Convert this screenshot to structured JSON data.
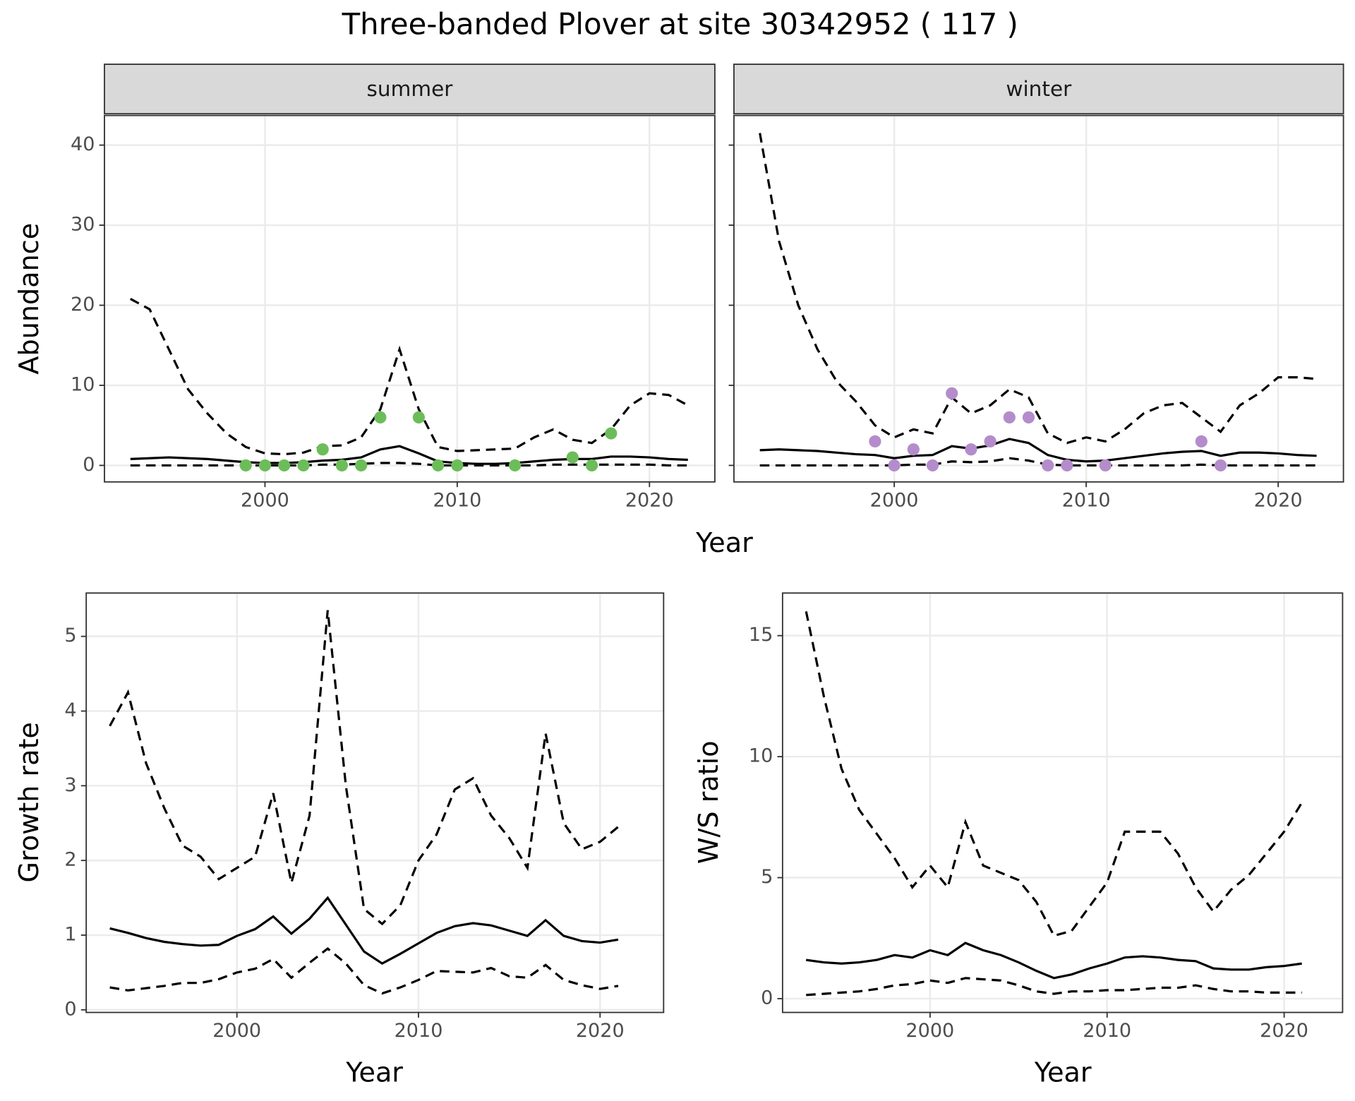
{
  "title": "Three-banded Plover at site 30342952 ( 117 )",
  "chart_data": [
    {
      "type": "line",
      "strip": "summer",
      "xlabel": "Year",
      "ylabel": "Abundance",
      "x": [
        1993,
        1994,
        1995,
        1996,
        1997,
        1998,
        1999,
        2000,
        2001,
        2002,
        2003,
        2004,
        2005,
        2006,
        2007,
        2008,
        2009,
        2010,
        2011,
        2012,
        2013,
        2014,
        2015,
        2016,
        2017,
        2018,
        2019,
        2020,
        2021,
        2022
      ],
      "xlim": [
        1991.65,
        2023.4
      ],
      "ylim": [
        -2.06,
        43.7
      ],
      "xticks": [
        2000,
        2010,
        2020
      ],
      "yticks": [
        0,
        10,
        20,
        30,
        40
      ],
      "grid": true,
      "ytick_labels": true,
      "series": [
        {
          "color": "#000000",
          "dashed": true,
          "values": [
            20.8,
            19.5,
            14.5,
            9.5,
            6.5,
            4,
            2.3,
            1.5,
            1.4,
            1.6,
            2.4,
            2.5,
            3.5,
            7,
            14.5,
            7,
            2.3,
            1.8,
            1.9,
            2,
            2.1,
            3.5,
            4.5,
            3.2,
            2.8,
            4.5,
            7.5,
            9,
            8.8,
            7.5
          ]
        },
        {
          "color": "#000000",
          "dashed": false,
          "values": [
            0.8,
            0.9,
            1.0,
            0.9,
            0.8,
            0.6,
            0.4,
            0.3,
            0.3,
            0.4,
            0.6,
            0.7,
            1.0,
            2.0,
            2.4,
            1.5,
            0.5,
            0.3,
            0.2,
            0.2,
            0.3,
            0.5,
            0.7,
            0.8,
            0.8,
            1.1,
            1.1,
            1.0,
            0.8,
            0.7
          ]
        },
        {
          "color": "#000000",
          "dashed": true,
          "values": [
            0,
            0,
            0,
            0,
            0,
            0,
            0,
            0,
            0,
            0,
            0.1,
            0.1,
            0.2,
            0.3,
            0.3,
            0.2,
            0,
            0,
            0,
            0,
            0,
            0,
            0.1,
            0.1,
            0.1,
            0.1,
            0.1,
            0.1,
            0,
            0
          ]
        }
      ],
      "points": {
        "color": "#6cbd5a",
        "x": [
          1999,
          2000,
          2001,
          2002,
          2003,
          2004,
          2005,
          2006,
          2008,
          2009,
          2010,
          2013,
          2016,
          2017,
          2018
        ],
        "values": [
          0,
          0,
          0,
          0,
          2,
          0,
          0,
          6,
          6,
          0,
          0,
          0,
          1,
          0,
          4
        ]
      }
    },
    {
      "type": "line",
      "strip": "winter",
      "x": [
        1993,
        1994,
        1995,
        1996,
        1997,
        1998,
        1999,
        2000,
        2001,
        2002,
        2003,
        2004,
        2005,
        2006,
        2007,
        2008,
        2009,
        2010,
        2011,
        2012,
        2013,
        2014,
        2015,
        2016,
        2017,
        2018,
        2019,
        2020,
        2021,
        2022
      ],
      "xlim": [
        1991.65,
        2023.4
      ],
      "ylim": [
        -2.06,
        43.7
      ],
      "xticks": [
        2000,
        2010,
        2020
      ],
      "yticks": [
        0,
        10,
        20,
        30,
        40
      ],
      "grid": true,
      "ytick_labels": false,
      "series": [
        {
          "color": "#000000",
          "dashed": true,
          "values": [
            41.5,
            28,
            20,
            14.5,
            10.5,
            8,
            5,
            3.5,
            4.5,
            4,
            8.5,
            6.5,
            7.5,
            9.5,
            8.5,
            4,
            2.8,
            3.5,
            3,
            4.5,
            6.5,
            7.5,
            7.8,
            6,
            4.2,
            7.5,
            9,
            11,
            11,
            10.8
          ]
        },
        {
          "color": "#000000",
          "dashed": false,
          "values": [
            1.9,
            2.0,
            1.9,
            1.8,
            1.6,
            1.4,
            1.3,
            0.9,
            1.2,
            1.3,
            2.4,
            2.1,
            2.5,
            3.3,
            2.8,
            1.3,
            0.7,
            0.5,
            0.6,
            0.9,
            1.2,
            1.5,
            1.7,
            1.8,
            1.2,
            1.6,
            1.6,
            1.5,
            1.3,
            1.2
          ]
        },
        {
          "color": "#000000",
          "dashed": true,
          "values": [
            0,
            0,
            0,
            0,
            0,
            0,
            0,
            0,
            0.1,
            0.1,
            0.5,
            0.4,
            0.5,
            0.9,
            0.6,
            0.1,
            0,
            0,
            0,
            0,
            0,
            0,
            0,
            0.1,
            0,
            0,
            0,
            0,
            0,
            0
          ]
        }
      ],
      "points": {
        "color": "#b48ccb",
        "x": [
          1999,
          2000,
          2001,
          2002,
          2003,
          2004,
          2005,
          2006,
          2007,
          2008,
          2009,
          2011,
          2016,
          2017
        ],
        "values": [
          3,
          0,
          2,
          0,
          9,
          2,
          3,
          6,
          6,
          0,
          0,
          0,
          3,
          0
        ]
      }
    },
    {
      "type": "line",
      "xlabel": "Year",
      "ylabel": "Growth rate",
      "x": [
        1993,
        1994,
        1995,
        1996,
        1997,
        1998,
        1999,
        2000,
        2001,
        2002,
        2003,
        2004,
        2005,
        2006,
        2007,
        2008,
        2009,
        2010,
        2011,
        2012,
        2013,
        2014,
        2015,
        2016,
        2017,
        2018,
        2019,
        2020,
        2021
      ],
      "xlim": [
        1991.7,
        2023.5
      ],
      "ylim": [
        -0.035,
        5.58
      ],
      "xticks": [
        2000,
        2010,
        2020
      ],
      "yticks": [
        0,
        1,
        2,
        3,
        4,
        5
      ],
      "grid": true,
      "ytick_labels": true,
      "series": [
        {
          "color": "#000000",
          "dashed": true,
          "values": [
            3.8,
            4.25,
            3.3,
            2.7,
            2.2,
            2.05,
            1.75,
            1.9,
            2.05,
            2.9,
            1.7,
            2.6,
            5.35,
            3,
            1.35,
            1.15,
            1.4,
            2.0,
            2.35,
            2.95,
            3.1,
            2.6,
            2.3,
            1.9,
            3.7,
            2.5,
            2.15,
            2.25,
            2.45
          ]
        },
        {
          "color": "#000000",
          "dashed": false,
          "values": [
            1.09,
            1.03,
            0.96,
            0.91,
            0.88,
            0.86,
            0.87,
            0.99,
            1.08,
            1.25,
            1.02,
            1.22,
            1.5,
            1.14,
            0.78,
            0.62,
            0.75,
            0.89,
            1.03,
            1.12,
            1.16,
            1.13,
            1.06,
            0.99,
            1.2,
            0.99,
            0.92,
            0.9,
            0.94
          ]
        },
        {
          "color": "#000000",
          "dashed": true,
          "values": [
            0.3,
            0.26,
            0.29,
            0.32,
            0.36,
            0.36,
            0.41,
            0.5,
            0.55,
            0.68,
            0.43,
            0.63,
            0.82,
            0.62,
            0.33,
            0.22,
            0.3,
            0.4,
            0.52,
            0.51,
            0.5,
            0.56,
            0.45,
            0.43,
            0.6,
            0.4,
            0.33,
            0.28,
            0.32
          ]
        }
      ]
    },
    {
      "type": "line",
      "xlabel": "Year",
      "ylabel": "W/S ratio",
      "x": [
        1993,
        1994,
        1995,
        1996,
        1997,
        1998,
        1999,
        2000,
        2001,
        2002,
        2003,
        2004,
        2005,
        2006,
        2007,
        2008,
        2009,
        2010,
        2011,
        2012,
        2013,
        2014,
        2015,
        2016,
        2017,
        2018,
        2019,
        2020,
        2021
      ],
      "xlim": [
        1991.67,
        2023.3
      ],
      "ylim": [
        -0.57,
        16.76
      ],
      "xticks": [
        2000,
        2010,
        2020
      ],
      "yticks": [
        0,
        5,
        10,
        15
      ],
      "grid": true,
      "ytick_labels": true,
      "series": [
        {
          "color": "#000000",
          "dashed": true,
          "values": [
            16,
            12.5,
            9.5,
            7.8,
            6.8,
            5.8,
            4.6,
            5.5,
            4.6,
            7.3,
            5.5,
            5.2,
            4.9,
            4.0,
            2.6,
            2.8,
            3.8,
            4.8,
            6.9,
            6.9,
            6.9,
            6.0,
            4.6,
            3.6,
            4.5,
            5.1,
            6.0,
            6.9,
            8.1
          ]
        },
        {
          "color": "#000000",
          "dashed": false,
          "values": [
            1.6,
            1.5,
            1.45,
            1.5,
            1.6,
            1.8,
            1.7,
            2.0,
            1.8,
            2.3,
            2.0,
            1.8,
            1.5,
            1.15,
            0.85,
            1.0,
            1.25,
            1.45,
            1.7,
            1.75,
            1.7,
            1.6,
            1.55,
            1.25,
            1.2,
            1.2,
            1.3,
            1.35,
            1.45
          ]
        },
        {
          "color": "#000000",
          "dashed": true,
          "values": [
            0.15,
            0.2,
            0.25,
            0.3,
            0.4,
            0.55,
            0.6,
            0.75,
            0.65,
            0.85,
            0.8,
            0.75,
            0.55,
            0.3,
            0.2,
            0.3,
            0.3,
            0.35,
            0.35,
            0.4,
            0.45,
            0.45,
            0.55,
            0.4,
            0.3,
            0.3,
            0.25,
            0.25,
            0.25
          ]
        }
      ]
    }
  ]
}
